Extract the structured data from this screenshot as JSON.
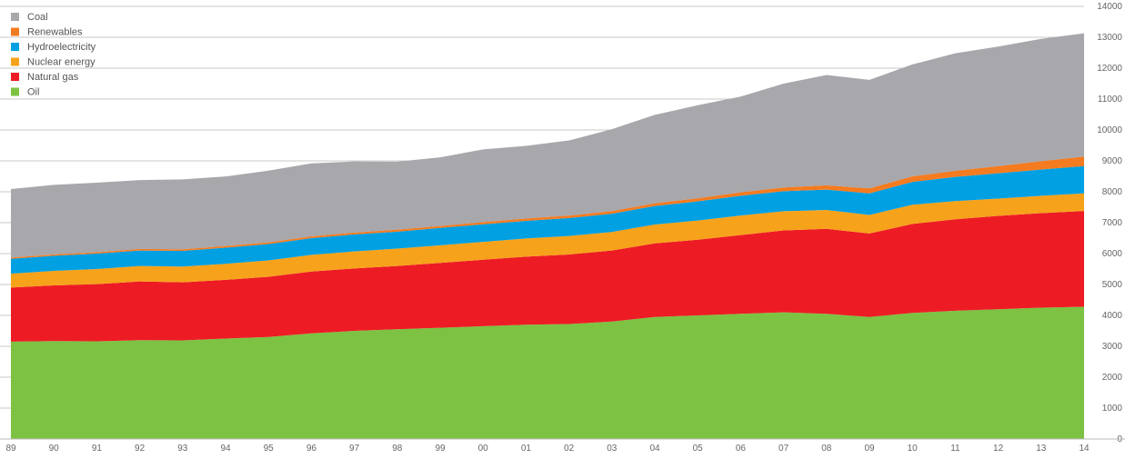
{
  "chart_data": {
    "type": "area",
    "stacked": true,
    "title": "",
    "xlabel": "",
    "ylabel": "",
    "categories": [
      "89",
      "90",
      "91",
      "92",
      "93",
      "94",
      "95",
      "96",
      "97",
      "98",
      "99",
      "00",
      "01",
      "02",
      "03",
      "04",
      "05",
      "06",
      "07",
      "08",
      "09",
      "10",
      "11",
      "12",
      "13",
      "14"
    ],
    "ylim": [
      0,
      14000
    ],
    "yticks": [
      "0",
      "1000",
      "2000",
      "3000",
      "4000",
      "5000",
      "6000",
      "7000",
      "8000",
      "9000",
      "10000",
      "11000",
      "12000",
      "13000",
      "14000"
    ],
    "grid": "horizontal",
    "legend_position": "top-left",
    "series": [
      {
        "name": "Oil",
        "color": "#7dc243",
        "values": [
          3150,
          3170,
          3160,
          3200,
          3190,
          3250,
          3300,
          3420,
          3500,
          3550,
          3600,
          3650,
          3700,
          3720,
          3800,
          3950,
          4000,
          4050,
          4100,
          4050,
          3950,
          4080,
          4150,
          4200,
          4250,
          4280
        ]
      },
      {
        "name": "Natural gas",
        "color": "#ed1c24",
        "values": [
          1750,
          1800,
          1850,
          1900,
          1880,
          1900,
          1950,
          2000,
          2020,
          2050,
          2100,
          2150,
          2200,
          2250,
          2300,
          2380,
          2450,
          2550,
          2650,
          2750,
          2700,
          2880,
          2960,
          3020,
          3060,
          3100
        ]
      },
      {
        "name": "Nuclear energy",
        "color": "#f7a21b",
        "values": [
          450,
          470,
          490,
          500,
          510,
          520,
          530,
          540,
          550,
          560,
          570,
          580,
          590,
          600,
          600,
          610,
          620,
          630,
          620,
          610,
          600,
          620,
          590,
          560,
          560,
          570
        ]
      },
      {
        "name": "Hydroelectricity",
        "color": "#00a0e3",
        "values": [
          480,
          490,
          500,
          500,
          510,
          520,
          530,
          540,
          550,
          550,
          560,
          570,
          570,
          580,
          590,
          600,
          620,
          640,
          650,
          660,
          700,
          740,
          780,
          820,
          850,
          880
        ]
      },
      {
        "name": "Renewables",
        "color": "#f47b20",
        "values": [
          40,
          45,
          45,
          50,
          50,
          55,
          55,
          60,
          60,
          65,
          65,
          70,
          75,
          80,
          85,
          90,
          100,
          110,
          120,
          140,
          160,
          180,
          200,
          230,
          270,
          310
        ]
      },
      {
        "name": "Coal",
        "color": "#a8a7ab",
        "values": [
          2220,
          2250,
          2250,
          2230,
          2260,
          2250,
          2320,
          2360,
          2300,
          2200,
          2220,
          2350,
          2350,
          2430,
          2650,
          2860,
          3010,
          3100,
          3360,
          3570,
          3510,
          3620,
          3800,
          3870,
          3960,
          3990
        ]
      }
    ]
  }
}
